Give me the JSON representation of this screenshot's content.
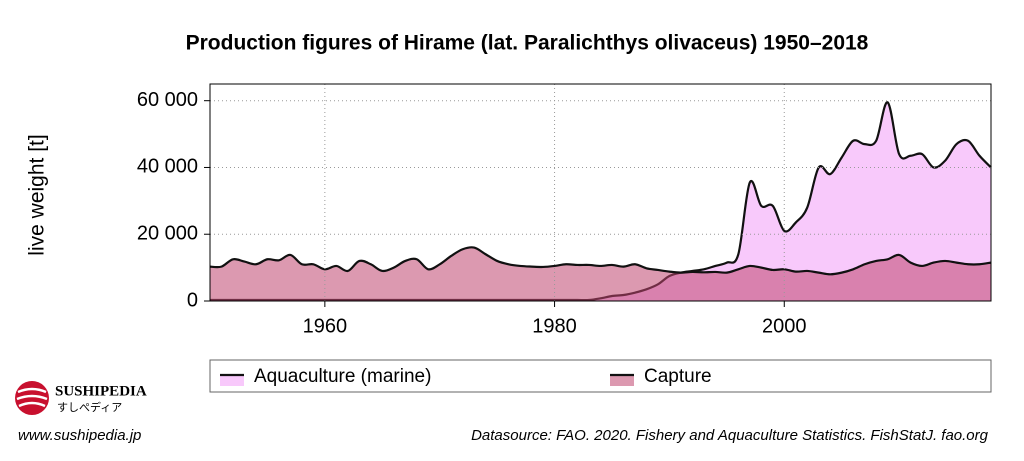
{
  "chart_data": {
    "type": "area",
    "title": "Production figures of Hirame (lat. Paralichthys olivaceus) 1950–2018",
    "y_label": "live weight [t]",
    "x": [
      1950,
      1951,
      1952,
      1953,
      1954,
      1955,
      1956,
      1957,
      1958,
      1959,
      1960,
      1961,
      1962,
      1963,
      1964,
      1965,
      1966,
      1967,
      1968,
      1969,
      1970,
      1971,
      1972,
      1973,
      1974,
      1975,
      1976,
      1977,
      1978,
      1979,
      1980,
      1981,
      1982,
      1983,
      1984,
      1985,
      1986,
      1987,
      1988,
      1989,
      1990,
      1991,
      1992,
      1993,
      1994,
      1995,
      1996,
      1997,
      1998,
      1999,
      2000,
      2001,
      2002,
      2003,
      2004,
      2005,
      2006,
      2007,
      2008,
      2009,
      2010,
      2011,
      2012,
      2013,
      2014,
      2015,
      2016,
      2017,
      2018
    ],
    "series": [
      {
        "name": "Aquaculture (marine)",
        "color": "#f8c9fb",
        "values": [
          0,
          0,
          0,
          0,
          0,
          0,
          0,
          0,
          0,
          0,
          0,
          0,
          0,
          0,
          0,
          0,
          0,
          0,
          0,
          0,
          0,
          0,
          0,
          0,
          0,
          0,
          0,
          0,
          0,
          0,
          0,
          0,
          0,
          200,
          800,
          1500,
          1800,
          2500,
          3500,
          5000,
          7500,
          8500,
          9000,
          9500,
          10500,
          11500,
          14000,
          35500,
          28500,
          28500,
          21000,
          23500,
          28000,
          40000,
          38000,
          43000,
          48000,
          47000,
          48000,
          59500,
          44000,
          43500,
          44000,
          40000,
          42000,
          47000,
          48000,
          43500,
          40000
        ]
      },
      {
        "name": "Capture",
        "color": "#c0466f",
        "values": [
          10300,
          10300,
          12500,
          11800,
          11000,
          12500,
          12200,
          13800,
          11000,
          11000,
          9500,
          10500,
          9000,
          12000,
          11000,
          9000,
          10000,
          12000,
          12500,
          9500,
          11000,
          13500,
          15500,
          16000,
          14000,
          12000,
          11000,
          10500,
          10300,
          10200,
          10500,
          11000,
          10800,
          10800,
          10500,
          10800,
          10300,
          11000,
          9800,
          9300,
          8800,
          8500,
          8700,
          8600,
          8700,
          8500,
          9500,
          10500,
          10000,
          9300,
          9500,
          8800,
          9000,
          8500,
          8000,
          8500,
          9500,
          11000,
          12000,
          12500,
          13800,
          11500,
          10500,
          11500,
          12000,
          11500,
          11000,
          11000,
          11500
        ]
      }
    ],
    "xlim": [
      1950,
      2018
    ],
    "xticks": [
      1960,
      1980,
      2000
    ],
    "ylim": [
      0,
      65000
    ],
    "yticks": [
      0,
      {
        "value": 20000,
        "label": "20 000"
      },
      {
        "value": 40000,
        "label": "40 000"
      },
      {
        "value": 60000,
        "label": "60 000"
      }
    ],
    "grid": true,
    "legend": "bottom"
  },
  "branding": {
    "name": "SUSHIPEDIA",
    "subname": "すしぺディア",
    "url": "www.sushipedia.jp"
  },
  "source": "Datasource: FAO. 2020. Fishery and Aquaculture Statistics. FishStatJ. fao.org"
}
